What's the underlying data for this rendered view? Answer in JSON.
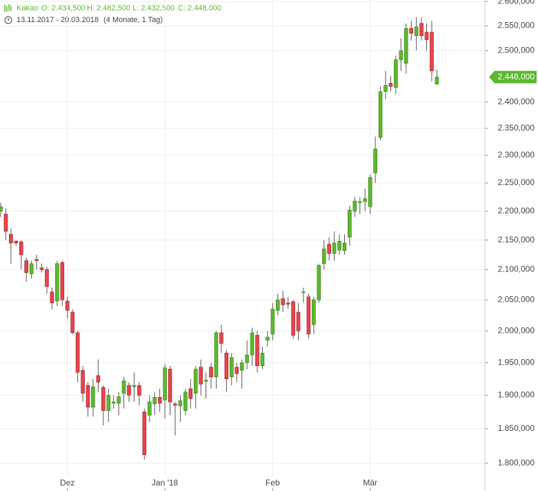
{
  "chart_data": {
    "type": "candlestick",
    "title": "Kakao",
    "info": [
      "O: 2.434,500",
      "H: 2.462,500",
      "L: 2.432,500",
      "C: 2.448,000"
    ],
    "subtitle": "13.11.2017 - 20.03.2018",
    "period": "(4 Monate, 1 Tag)",
    "log_scale": true,
    "grid": true,
    "up_color": "#5cb82e",
    "down_color": "#e8444c",
    "ylim": [
      1781,
      2603
    ],
    "yticks": [
      {
        "value": 1800,
        "label": "1.800,000"
      },
      {
        "value": 1850,
        "label": "1.850,000"
      },
      {
        "value": 1900,
        "label": "1.900,000"
      },
      {
        "value": 1950,
        "label": "1.950,000"
      },
      {
        "value": 2000,
        "label": "2.000,000"
      },
      {
        "value": 2050,
        "label": "2.050,000"
      },
      {
        "value": 2100,
        "label": "2.100,000"
      },
      {
        "value": 2150,
        "label": "2.150,000"
      },
      {
        "value": 2200,
        "label": "2.200,000"
      },
      {
        "value": 2250,
        "label": "2.250,000"
      },
      {
        "value": 2300,
        "label": "2.300,000"
      },
      {
        "value": 2350,
        "label": "2.350,000"
      },
      {
        "value": 2400,
        "label": "2.400,000"
      },
      {
        "value": 2500,
        "label": "2.500,000"
      },
      {
        "value": 2550,
        "label": "2.550,000"
      },
      {
        "value": 2600,
        "label": "2.600,000"
      }
    ],
    "xticks": [
      {
        "value": 13,
        "label": "Dez"
      },
      {
        "value": 32,
        "label": "Jan '18"
      },
      {
        "value": 53,
        "label": "Feb"
      },
      {
        "value": 72,
        "label": "Mär"
      }
    ],
    "last_price_label": "2.448,000",
    "open": [
      2200,
      2195,
      2160,
      2148,
      2147,
      2115,
      2093,
      2117,
      2103,
      2100,
      2063,
      2048,
      2112,
      2048,
      2030,
      1997,
      1938,
      1915,
      1882,
      1930,
      1912,
      1877,
      1888,
      1888,
      1903,
      1915,
      1913,
      1915,
      1875,
      1870,
      1887,
      1897,
      1893,
      1940,
      1887,
      1884,
      1877,
      1910,
      1903,
      1943,
      1921,
      1943,
      1928,
      1997,
      1965,
      1928,
      1943,
      1938,
      1950,
      1962,
      1993,
      1945,
      1985,
      1995,
      2033,
      2052,
      2045,
      2047,
      2030,
      2062,
      2055,
      2010,
      2050,
      2110,
      2143,
      2127,
      2133,
      2132,
      2155,
      2200,
      2215,
      2217,
      2208,
      2268,
      2333,
      2420,
      2436,
      2428,
      2482,
      2475,
      2545,
      2530,
      2555,
      2537,
      2537,
      2434.5
    ],
    "high": [
      2215,
      2205,
      2170,
      2150,
      2150,
      2120,
      2115,
      2125,
      2110,
      2105,
      2070,
      2115,
      2115,
      2055,
      2035,
      2000,
      1945,
      1920,
      1925,
      1955,
      1915,
      1910,
      1900,
      1905,
      1928,
      1920,
      1935,
      1920,
      1880,
      1900,
      1905,
      1910,
      1948,
      1945,
      1890,
      1900,
      1910,
      1925,
      1945,
      1955,
      1935,
      1950,
      2000,
      2010,
      1970,
      1965,
      1950,
      1955,
      1985,
      2005,
      2000,
      1975,
      2000,
      2045,
      2060,
      2065,
      2055,
      2050,
      2045,
      2070,
      2060,
      2055,
      2110,
      2150,
      2155,
      2165,
      2160,
      2160,
      2210,
      2225,
      2225,
      2240,
      2265,
      2335,
      2430,
      2460,
      2450,
      2490,
      2525,
      2555,
      2560,
      2568,
      2568,
      2555,
      2560,
      2462.5
    ],
    "low": [
      2190,
      2150,
      2110,
      2140,
      2100,
      2080,
      2085,
      2100,
      2095,
      2060,
      2035,
      2040,
      2040,
      2020,
      1995,
      1920,
      1890,
      1868,
      1868,
      1905,
      1855,
      1860,
      1880,
      1870,
      1880,
      1890,
      1890,
      1885,
      1805,
      1860,
      1870,
      1875,
      1865,
      1870,
      1840,
      1860,
      1870,
      1880,
      1880,
      1900,
      1895,
      1910,
      1910,
      1965,
      1905,
      1915,
      1920,
      1910,
      1940,
      1945,
      1935,
      1940,
      1975,
      1985,
      2025,
      2030,
      2035,
      1988,
      1985,
      2045,
      1988,
      1995,
      2045,
      2100,
      2115,
      2115,
      2125,
      2125,
      2140,
      2190,
      2195,
      2200,
      2195,
      2250,
      2328,
      2405,
      2420,
      2415,
      2460,
      2455,
      2520,
      2500,
      2520,
      2500,
      2440,
      2432.5
    ],
    "close": [
      2208,
      2165,
      2145,
      2145,
      2125,
      2095,
      2110,
      2115,
      2100,
      2072,
      2045,
      2110,
      2050,
      2033,
      1997,
      1935,
      1903,
      1882,
      1913,
      1920,
      1877,
      1900,
      1890,
      1898,
      1922,
      1900,
      1915,
      1900,
      1812,
      1890,
      1897,
      1888,
      1942,
      1890,
      1885,
      1892,
      1905,
      1895,
      1940,
      1917,
      1923,
      1928,
      1997,
      1980,
      1925,
      1958,
      1933,
      1950,
      1962,
      1997,
      1945,
      1965,
      1990,
      2035,
      2050,
      2042,
      2043,
      1993,
      2000,
      2063,
      1995,
      2050,
      2107,
      2135,
      2127,
      2145,
      2148,
      2145,
      2202,
      2218,
      2217,
      2222,
      2260,
      2312,
      2420,
      2432,
      2430,
      2482,
      2500,
      2545,
      2535,
      2548,
      2530,
      2522,
      2460,
      2448
    ]
  }
}
